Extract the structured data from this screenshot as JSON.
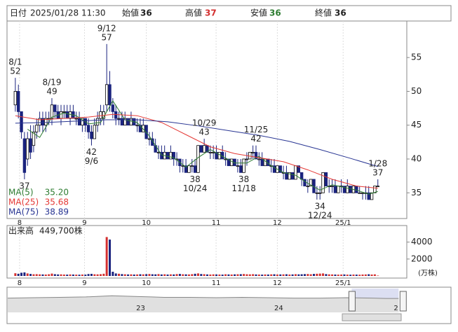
{
  "chart_data": {
    "type": "candlestick",
    "header": {
      "date_label": "日付",
      "datetime": "2025/01/28 11:30",
      "open_label": "始値",
      "open": 36,
      "high_label": "高値",
      "high": 37,
      "low_label": "安値",
      "low": 36,
      "close_label": "終値",
      "close": 36
    },
    "ohlc": [
      [
        48,
        52,
        47,
        50
      ],
      [
        50,
        51,
        46,
        47
      ],
      [
        47,
        47,
        43,
        44
      ],
      [
        43,
        44,
        37,
        38
      ],
      [
        40,
        44,
        39,
        43
      ],
      [
        43,
        45,
        40,
        41
      ],
      [
        42,
        45,
        41,
        44
      ],
      [
        44,
        46,
        43,
        45
      ],
      [
        45,
        47,
        44,
        46
      ],
      [
        46,
        47,
        44,
        45
      ],
      [
        45,
        47,
        44,
        46
      ],
      [
        46,
        47,
        45,
        46
      ],
      [
        46,
        49,
        45,
        48
      ],
      [
        48,
        48,
        46,
        47
      ],
      [
        47,
        48,
        46,
        46
      ],
      [
        46,
        48,
        45,
        47
      ],
      [
        47,
        48,
        46,
        47
      ],
      [
        47,
        48,
        46,
        46
      ],
      [
        46,
        48,
        45,
        47
      ],
      [
        47,
        48,
        46,
        46
      ],
      [
        46,
        47,
        45,
        46
      ],
      [
        46,
        47,
        45,
        45
      ],
      [
        45,
        46,
        44,
        46
      ],
      [
        46,
        46,
        44,
        45
      ],
      [
        45,
        46,
        43,
        44
      ],
      [
        44,
        45,
        42,
        43
      ],
      [
        43,
        46,
        43,
        45
      ],
      [
        45,
        47,
        44,
        46
      ],
      [
        46,
        48,
        45,
        47
      ],
      [
        46,
        48,
        45,
        47
      ],
      [
        48,
        57,
        47,
        51
      ],
      [
        51,
        53,
        47,
        48
      ],
      [
        48,
        49,
        46,
        47
      ],
      [
        47,
        48,
        45,
        46
      ],
      [
        46,
        47,
        45,
        46
      ],
      [
        46,
        47,
        45,
        45
      ],
      [
        45,
        47,
        45,
        46
      ],
      [
        46,
        46,
        45,
        45
      ],
      [
        45,
        47,
        45,
        46
      ],
      [
        46,
        46,
        45,
        45
      ],
      [
        45,
        46,
        44,
        45
      ],
      [
        45,
        46,
        44,
        44
      ],
      [
        44,
        46,
        44,
        45
      ],
      [
        45,
        45,
        43,
        43
      ],
      [
        43,
        44,
        42,
        43
      ],
      [
        43,
        44,
        42,
        42
      ],
      [
        42,
        43,
        41,
        41
      ],
      [
        41,
        42,
        40,
        41
      ],
      [
        41,
        42,
        40,
        40
      ],
      [
        40,
        42,
        40,
        41
      ],
      [
        41,
        41,
        40,
        40
      ],
      [
        40,
        42,
        40,
        41
      ],
      [
        41,
        41,
        39,
        40
      ],
      [
        40,
        41,
        39,
        40
      ],
      [
        40,
        40,
        38,
        39
      ],
      [
        39,
        40,
        38,
        39
      ],
      [
        39,
        40,
        38,
        38
      ],
      [
        38,
        39,
        38,
        39
      ],
      [
        39,
        40,
        38,
        39
      ],
      [
        39,
        40,
        38,
        38
      ],
      [
        38,
        42,
        38,
        42
      ],
      [
        42,
        42,
        41,
        41
      ],
      [
        41,
        43,
        41,
        42
      ],
      [
        42,
        42,
        41,
        41
      ],
      [
        41,
        42,
        40,
        41
      ],
      [
        41,
        42,
        40,
        41
      ],
      [
        41,
        42,
        40,
        40
      ],
      [
        40,
        41,
        40,
        41
      ],
      [
        41,
        42,
        40,
        40
      ],
      [
        40,
        41,
        39,
        40
      ],
      [
        40,
        40,
        39,
        39
      ],
      [
        39,
        40,
        39,
        40
      ],
      [
        40,
        40,
        39,
        39
      ],
      [
        39,
        40,
        38,
        39
      ],
      [
        39,
        40,
        38,
        38
      ],
      [
        38,
        40,
        38,
        40
      ],
      [
        40,
        41,
        39,
        40
      ],
      [
        40,
        41,
        40,
        41
      ],
      [
        41,
        42,
        40,
        41
      ],
      [
        41,
        42,
        40,
        40
      ],
      [
        40,
        41,
        39,
        40
      ],
      [
        40,
        41,
        39,
        39
      ],
      [
        39,
        40,
        39,
        40
      ],
      [
        40,
        40,
        39,
        39
      ],
      [
        39,
        40,
        38,
        39
      ],
      [
        39,
        40,
        38,
        38
      ],
      [
        38,
        39,
        38,
        39
      ],
      [
        39,
        39,
        38,
        38
      ],
      [
        38,
        39,
        37,
        38
      ],
      [
        38,
        39,
        37,
        37
      ],
      [
        37,
        38,
        37,
        38
      ],
      [
        38,
        38,
        37,
        37
      ],
      [
        37,
        39,
        37,
        39
      ],
      [
        39,
        39,
        38,
        38
      ],
      [
        38,
        38,
        36,
        37
      ],
      [
        37,
        37,
        36,
        36
      ],
      [
        36,
        37,
        35,
        36
      ],
      [
        36,
        37,
        36,
        37
      ],
      [
        37,
        37,
        35,
        35
      ],
      [
        35,
        36,
        34,
        35
      ],
      [
        35,
        36,
        34,
        35
      ],
      [
        35,
        38,
        35,
        38
      ],
      [
        38,
        38,
        36,
        36
      ],
      [
        36,
        37,
        35,
        36
      ],
      [
        36,
        37,
        35,
        36
      ],
      [
        36,
        37,
        35,
        35
      ],
      [
        35,
        36,
        35,
        36
      ],
      [
        36,
        37,
        35,
        36
      ],
      [
        36,
        36,
        35,
        35
      ],
      [
        35,
        37,
        35,
        36
      ],
      [
        36,
        36,
        35,
        35
      ],
      [
        35,
        36,
        35,
        36
      ],
      [
        36,
        36,
        35,
        35
      ],
      [
        35,
        36,
        35,
        35
      ],
      [
        35,
        35,
        34,
        35
      ],
      [
        35,
        36,
        34,
        35
      ],
      [
        35,
        36,
        34,
        34
      ],
      [
        34,
        35,
        34,
        35
      ],
      [
        35,
        36,
        35,
        36
      ],
      [
        36,
        37,
        36,
        36
      ]
    ],
    "up_color": "#ffffff",
    "down_color": "#1a237e",
    "xlim": [
      -2.5,
      128.5
    ],
    "xticks": [
      {
        "value": 1.4,
        "label": "8"
      },
      {
        "value": 22.7,
        "label": "9"
      },
      {
        "value": 43,
        "label": "10"
      },
      {
        "value": 65.9,
        "label": "11"
      },
      {
        "value": 86,
        "label": "12"
      },
      {
        "value": 107.6,
        "label": "25/1"
      }
    ],
    "ylim": [
      31.2,
      60.4
    ],
    "yticks": [
      35,
      40,
      45,
      50,
      55
    ],
    "annotations": [
      {
        "x": 0,
        "date": "8/1",
        "value": 52,
        "side": "above"
      },
      {
        "x": 3,
        "value": 37,
        "side": "below"
      },
      {
        "x": 12,
        "date": "8/19",
        "value": 49,
        "side": "above"
      },
      {
        "x": 25,
        "date": "9/6",
        "value": 42,
        "side": "below"
      },
      {
        "x": 30,
        "date": "9/12",
        "value": 57,
        "side": "above"
      },
      {
        "x": 59,
        "date": "10/24",
        "value": 38,
        "side": "below"
      },
      {
        "x": 62,
        "date": "10/29",
        "value": 43,
        "side": "above"
      },
      {
        "x": 75,
        "date": "11/18",
        "value": 38,
        "side": "below"
      },
      {
        "x": 79,
        "date": "11/25",
        "value": 42,
        "side": "above"
      },
      {
        "x": 100,
        "date": "12/24",
        "value": 34,
        "side": "below"
      },
      {
        "x": 119,
        "date": "1/28",
        "value": 37,
        "side": "above"
      }
    ],
    "series": [
      {
        "name": "MA(5)",
        "legend_value": "35.20",
        "color": "#2e7d32",
        "x": [
          4,
          8,
          12,
          16,
          20,
          24,
          28,
          32,
          36,
          40,
          44,
          48,
          52,
          56,
          60,
          64,
          68,
          72,
          76,
          80,
          84,
          88,
          92,
          96,
          100,
          104,
          108,
          112,
          116,
          119
        ],
        "values": [
          44.4,
          43.2,
          46.2,
          46.8,
          46.4,
          45.2,
          45.4,
          48.6,
          45.8,
          45.4,
          43.4,
          40.6,
          40.2,
          38.8,
          40.2,
          41.4,
          40.4,
          39.4,
          39.4,
          40.4,
          39,
          38,
          37.6,
          36.4,
          35.4,
          36.2,
          35.8,
          35.4,
          34.8,
          35.2
        ]
      },
      {
        "name": "MA(25)",
        "legend_value": "35.68",
        "color": "#e53935",
        "x": [
          0,
          8,
          16,
          24,
          32,
          40,
          48,
          56,
          64,
          72,
          80,
          88,
          96,
          104,
          112,
          119
        ],
        "values": [
          46.4,
          45.8,
          46,
          46.2,
          46.6,
          46.4,
          45.4,
          43.6,
          41.8,
          40.8,
          40.2,
          39.6,
          38.4,
          37,
          36,
          35.68
        ]
      },
      {
        "name": "MA(75)",
        "legend_value": "38.89",
        "color": "#283593",
        "x": [
          0,
          10,
          20,
          30,
          40,
          50,
          60,
          70,
          80,
          90,
          100,
          110,
          119
        ],
        "values": [
          45.3,
          45.4,
          45.6,
          45.8,
          45.8,
          45.5,
          44.9,
          44.2,
          43.5,
          42.6,
          41.4,
          40.1,
          38.89
        ]
      }
    ],
    "volume": {
      "label": "出来高",
      "latest": "449,700株",
      "unit": "(万株)",
      "ylim": [
        0,
        4800
      ],
      "yticks": [
        2000,
        4000
      ],
      "values": [
        320,
        260,
        380,
        420,
        300,
        240,
        200,
        210,
        190,
        180,
        170,
        200,
        280,
        210,
        180,
        190,
        170,
        160,
        180,
        170,
        160,
        150,
        170,
        160,
        230,
        250,
        200,
        190,
        210,
        260,
        4600,
        4300,
        500,
        300,
        260,
        220,
        200,
        180,
        190,
        170,
        180,
        200,
        190,
        210,
        230,
        200,
        190,
        220,
        180,
        200,
        170,
        190,
        180,
        220,
        240,
        200,
        190,
        180,
        210,
        260,
        300,
        230,
        210,
        180,
        170,
        190,
        180,
        170,
        160,
        200,
        180,
        170,
        190,
        200,
        210,
        230,
        200,
        190,
        210,
        180,
        170,
        160,
        180,
        170,
        190,
        200,
        170,
        180,
        190,
        200,
        170,
        180,
        210,
        190,
        200,
        220,
        230,
        200,
        240,
        260,
        280,
        300,
        220,
        190,
        180,
        170,
        160,
        170,
        180,
        160,
        150,
        170,
        160,
        150,
        170,
        180,
        200,
        170,
        190,
        45
      ]
    },
    "navigator": {
      "ylim": [
        0,
        60
      ],
      "x": [
        0,
        2,
        4,
        6,
        8,
        10,
        11,
        12,
        14,
        16,
        18,
        20,
        22,
        24,
        26,
        28,
        29,
        30
      ],
      "values": [
        36,
        37,
        38,
        39,
        42,
        40,
        39,
        38,
        38,
        37,
        38,
        37,
        36,
        36,
        37,
        36,
        35,
        35
      ],
      "xticks": [
        {
          "value": 10.2,
          "label": "23"
        },
        {
          "value": 20.8,
          "label": "24"
        },
        {
          "value": 29.8,
          "label": "2"
        }
      ],
      "xlim": [
        0,
        30.2
      ],
      "range": [
        26.4,
        30
      ]
    }
  }
}
